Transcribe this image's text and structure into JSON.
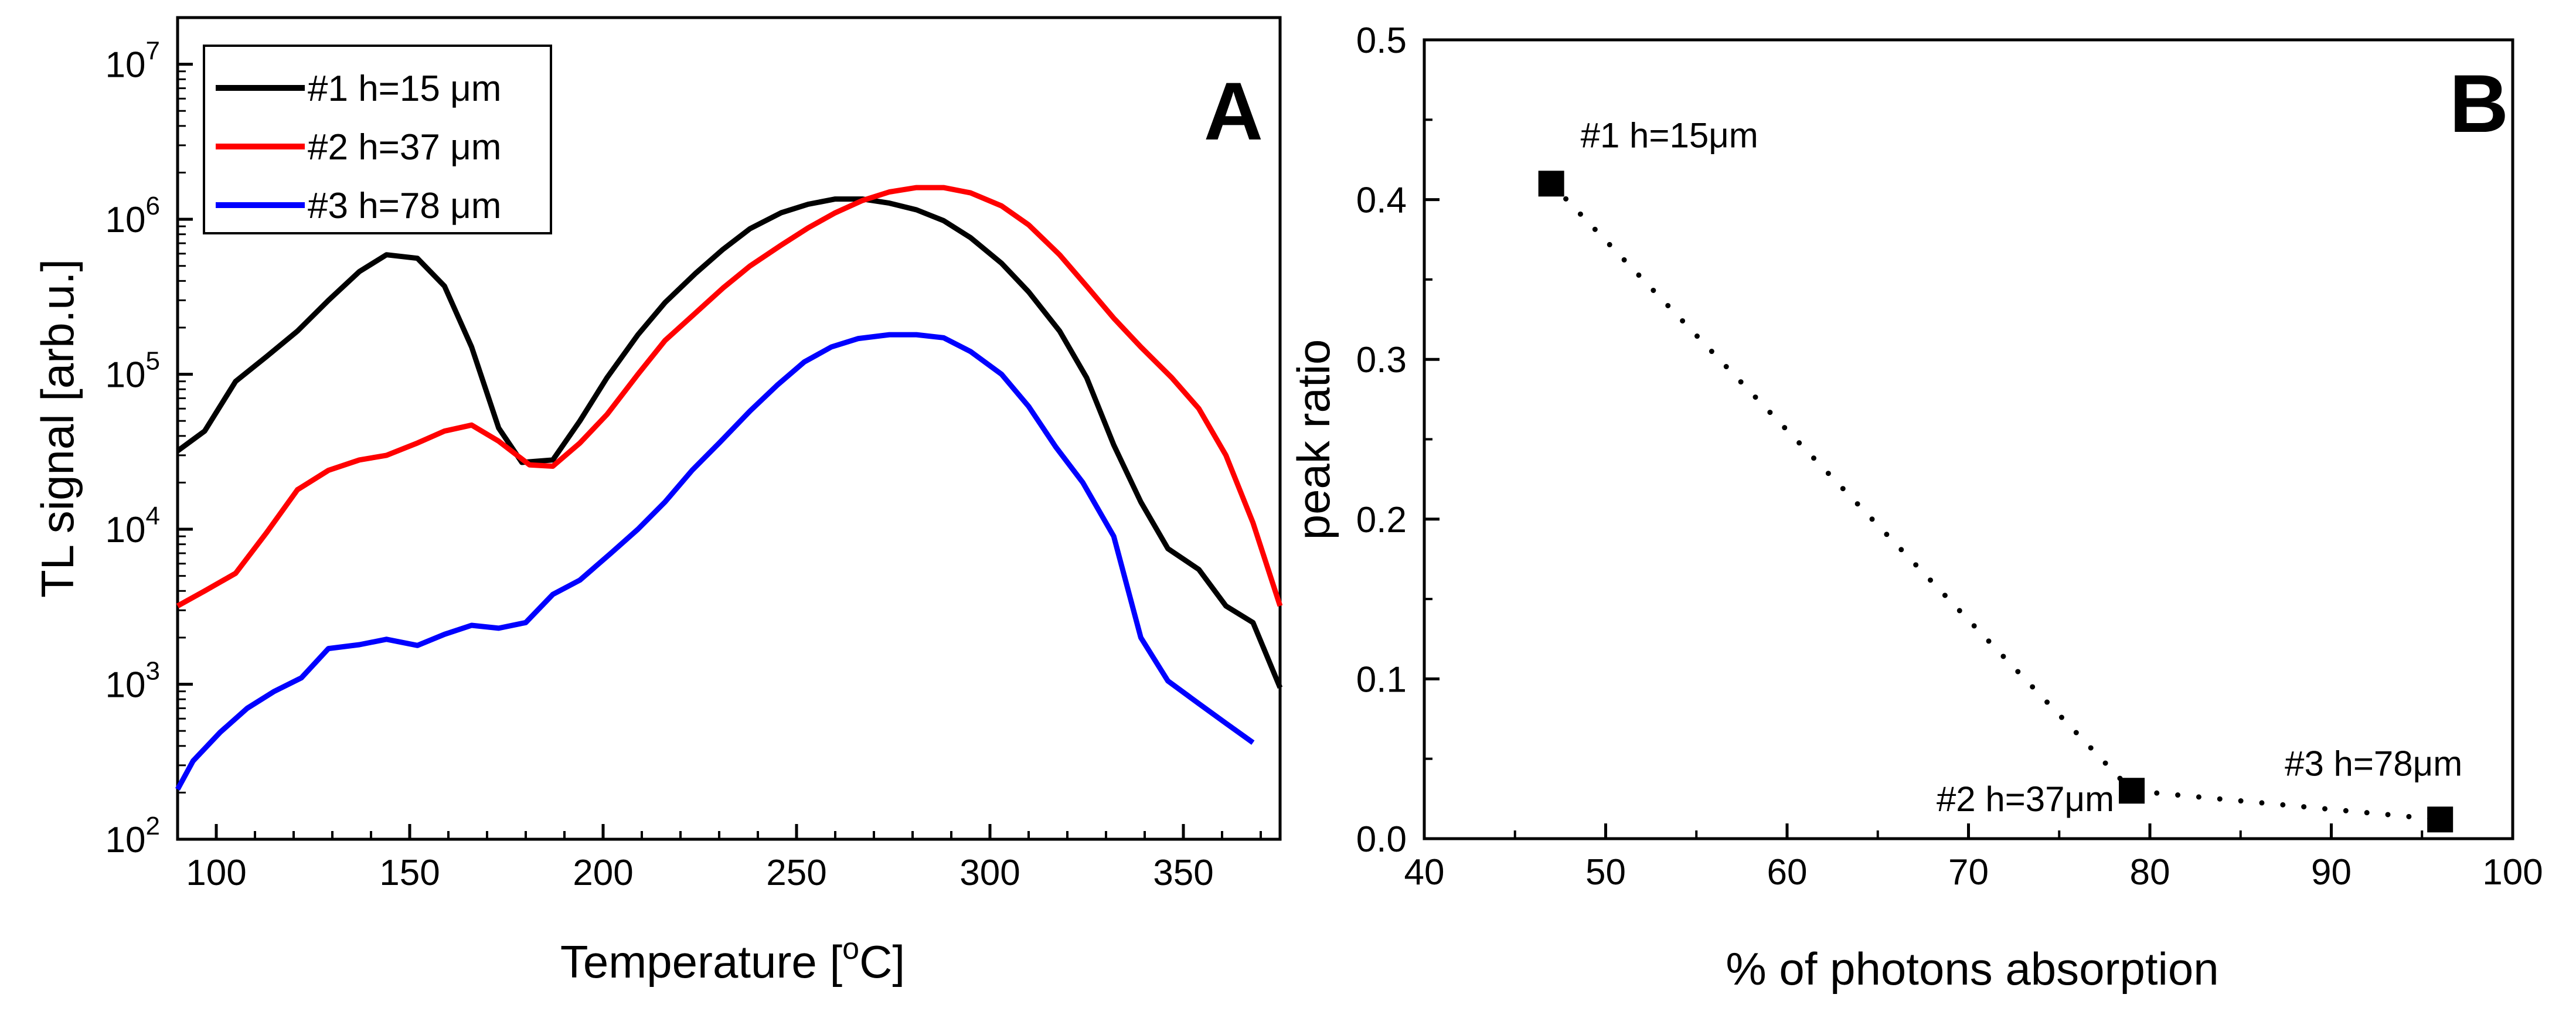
{
  "chart_data": [
    {
      "type": "line",
      "panel_label": "A",
      "xlabel": "Temperature [",
      "xlabel_sup": "o",
      "xlabel_suffix": "C]",
      "ylabel": "TL signal [arb.u.]",
      "xlim": [
        90,
        375
      ],
      "ylim": [
        100,
        20000000
      ],
      "yscale": "log",
      "xticks": [
        100,
        150,
        200,
        250,
        300,
        350
      ],
      "yticks": [
        {
          "base": "10",
          "exp": "2",
          "value": 100
        },
        {
          "base": "10",
          "exp": "3",
          "value": 1000
        },
        {
          "base": "10",
          "exp": "4",
          "value": 10000
        },
        {
          "base": "10",
          "exp": "5",
          "value": 100000
        },
        {
          "base": "10",
          "exp": "6",
          "value": 1000000
        },
        {
          "base": "10",
          "exp": "7",
          "value": 10000000
        }
      ],
      "legend_placement": "top-left",
      "series": [
        {
          "name": "#1 h=15 μm",
          "color": "#000000",
          "points": [
            [
              90,
              32000
            ],
            [
              97,
              43000
            ],
            [
              105,
              90000
            ],
            [
              113,
              130000
            ],
            [
              121,
              190000
            ],
            [
              129,
              300000
            ],
            [
              137,
              460000
            ],
            [
              144,
              590000
            ],
            [
              152,
              560000
            ],
            [
              159,
              370000
            ],
            [
              166,
              150000
            ],
            [
              173,
              45000
            ],
            [
              179,
              27000
            ],
            [
              187,
              28000
            ],
            [
              194,
              50000
            ],
            [
              201,
              95000
            ],
            [
              209,
              180000
            ],
            [
              216,
              290000
            ],
            [
              224,
              450000
            ],
            [
              231,
              640000
            ],
            [
              238,
              870000
            ],
            [
              246,
              1100000
            ],
            [
              253,
              1250000
            ],
            [
              260,
              1350000
            ],
            [
              267,
              1350000
            ],
            [
              274,
              1270000
            ],
            [
              281,
              1150000
            ],
            [
              288,
              980000
            ],
            [
              295,
              760000
            ],
            [
              303,
              520000
            ],
            [
              310,
              340000
            ],
            [
              318,
              190000
            ],
            [
              325,
              95000
            ],
            [
              332,
              35000
            ],
            [
              339,
              15000
            ],
            [
              346,
              7500
            ],
            [
              354,
              5500
            ],
            [
              361,
              3200
            ],
            [
              368,
              2500
            ],
            [
              375,
              950
            ]
          ]
        },
        {
          "name": "#2 h=37 μm",
          "color": "#ff0000",
          "points": [
            [
              90,
              3200
            ],
            [
              97,
              4000
            ],
            [
              105,
              5200
            ],
            [
              113,
              9500
            ],
            [
              121,
              18000
            ],
            [
              129,
              24000
            ],
            [
              137,
              28000
            ],
            [
              144,
              30000
            ],
            [
              152,
              36000
            ],
            [
              159,
              43000
            ],
            [
              166,
              47000
            ],
            [
              173,
              37000
            ],
            [
              181,
              26000
            ],
            [
              187,
              25500
            ],
            [
              194,
              36000
            ],
            [
              201,
              55000
            ],
            [
              209,
              100000
            ],
            [
              216,
              165000
            ],
            [
              224,
              250000
            ],
            [
              231,
              360000
            ],
            [
              238,
              500000
            ],
            [
              246,
              680000
            ],
            [
              253,
              880000
            ],
            [
              260,
              1100000
            ],
            [
              267,
              1320000
            ],
            [
              274,
              1500000
            ],
            [
              281,
              1600000
            ],
            [
              288,
              1600000
            ],
            [
              295,
              1480000
            ],
            [
              303,
              1220000
            ],
            [
              310,
              920000
            ],
            [
              318,
              590000
            ],
            [
              325,
              370000
            ],
            [
              332,
              230000
            ],
            [
              339,
              150000
            ],
            [
              347,
              95000
            ],
            [
              354,
              60000
            ],
            [
              361,
              30000
            ],
            [
              368,
              11000
            ],
            [
              375,
              3200
            ]
          ]
        },
        {
          "name": "#3 h=78 μm",
          "color": "#0000ff",
          "points": [
            [
              90,
              210
            ],
            [
              94,
              320
            ],
            [
              101,
              490
            ],
            [
              108,
              700
            ],
            [
              115,
              900
            ],
            [
              122,
              1100
            ],
            [
              129,
              1700
            ],
            [
              137,
              1800
            ],
            [
              144,
              1950
            ],
            [
              152,
              1780
            ],
            [
              159,
              2100
            ],
            [
              166,
              2400
            ],
            [
              173,
              2300
            ],
            [
              180,
              2500
            ],
            [
              187,
              3800
            ],
            [
              194,
              4700
            ],
            [
              202,
              7000
            ],
            [
              209,
              10000
            ],
            [
              216,
              15000
            ],
            [
              223,
              24000
            ],
            [
              230,
              36000
            ],
            [
              238,
              58000
            ],
            [
              245,
              85000
            ],
            [
              252,
              120000
            ],
            [
              259,
              150000
            ],
            [
              266,
              170000
            ],
            [
              274,
              180000
            ],
            [
              281,
              180000
            ],
            [
              288,
              172000
            ],
            [
              295,
              140000
            ],
            [
              303,
              100000
            ],
            [
              310,
              62000
            ],
            [
              317,
              34000
            ],
            [
              324,
              20000
            ],
            [
              332,
              9000
            ],
            [
              339,
              2000
            ],
            [
              346,
              1050
            ],
            [
              354,
              750
            ],
            [
              361,
              560
            ],
            [
              368,
              420
            ]
          ]
        }
      ]
    },
    {
      "type": "scatter",
      "panel_label": "B",
      "xlabel": "% of photons absorption",
      "ylabel": "peak ratio",
      "xlim": [
        40,
        100
      ],
      "ylim": [
        0.0,
        0.5
      ],
      "xticks": [
        "40",
        "50",
        "60",
        "70",
        "80",
        "90",
        "100"
      ],
      "yticks": [
        "0.0",
        "0.1",
        "0.2",
        "0.3",
        "0.4",
        "0.5"
      ],
      "connector": "dotted",
      "marker": "square",
      "color": "#000000",
      "points": [
        {
          "x": 47,
          "y": 0.41,
          "label": "#1 h=15μm"
        },
        {
          "x": 79,
          "y": 0.03,
          "label": "#2 h=37μm"
        },
        {
          "x": 96,
          "y": 0.012,
          "label": "#3 h=78μm"
        }
      ]
    }
  ]
}
